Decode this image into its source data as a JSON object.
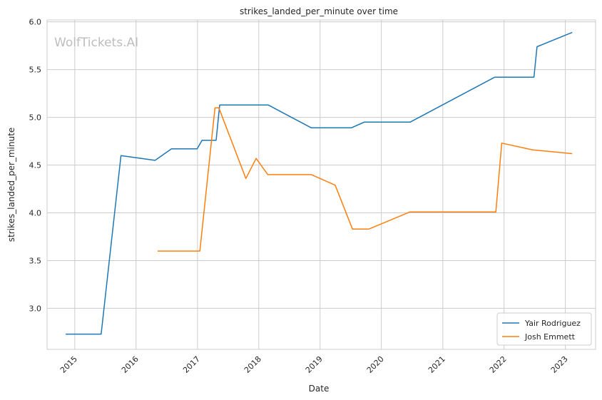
{
  "chart_data": {
    "type": "line",
    "title": "strikes_landed_per_minute over time",
    "xlabel": "Date",
    "ylabel": "strikes_landed_per_minute",
    "watermark": "WolfTickets.AI",
    "x_range": [
      "2014-07-20",
      "2023-06-30"
    ],
    "ylim": [
      2.57,
      6.02
    ],
    "y_ticks": [
      3.0,
      3.5,
      4.0,
      4.5,
      5.0,
      5.5,
      6.0
    ],
    "y_tick_labels": [
      "3.0",
      "3.5",
      "4.0",
      "4.5",
      "5.0",
      "5.5",
      "6.0"
    ],
    "x_ticks": [
      "2015-01-01",
      "2016-01-01",
      "2017-01-01",
      "2018-01-01",
      "2019-01-01",
      "2020-01-01",
      "2021-01-01",
      "2022-01-01",
      "2023-01-01"
    ],
    "x_tick_labels": [
      "2015",
      "2016",
      "2017",
      "2018",
      "2019",
      "2020",
      "2021",
      "2022",
      "2023"
    ],
    "grid": true,
    "legend_position": "bottom-right",
    "series": [
      {
        "name": "Yair Rodriguez",
        "color": "#1f77b4",
        "points": [
          [
            "2014-11-08",
            2.73
          ],
          [
            "2015-06-07",
            2.73
          ],
          [
            "2015-10-03",
            4.6
          ],
          [
            "2016-04-23",
            4.55
          ],
          [
            "2016-07-30",
            4.67
          ],
          [
            "2016-12-30",
            4.67
          ],
          [
            "2017-01-28",
            4.76
          ],
          [
            "2017-04-22",
            4.76
          ],
          [
            "2017-05-13",
            5.13
          ],
          [
            "2018-02-26",
            5.13
          ],
          [
            "2018-11-10",
            4.89
          ],
          [
            "2019-07-06",
            4.89
          ],
          [
            "2019-09-21",
            4.95
          ],
          [
            "2020-06-20",
            4.95
          ],
          [
            "2021-11-06",
            5.42
          ],
          [
            "2022-06-28",
            5.42
          ],
          [
            "2022-07-16",
            5.74
          ],
          [
            "2023-02-11",
            5.89
          ]
        ]
      },
      {
        "name": "Josh Emmett",
        "color": "#ff7f0e",
        "points": [
          [
            "2016-05-08",
            3.6
          ],
          [
            "2017-01-15",
            3.6
          ],
          [
            "2017-04-15",
            5.1
          ],
          [
            "2017-05-08",
            5.1
          ],
          [
            "2017-10-16",
            4.36
          ],
          [
            "2017-12-16",
            4.57
          ],
          [
            "2018-02-24",
            4.4
          ],
          [
            "2018-11-10",
            4.4
          ],
          [
            "2019-04-01",
            4.29
          ],
          [
            "2019-07-13",
            3.83
          ],
          [
            "2019-10-18",
            3.83
          ],
          [
            "2020-06-20",
            4.01
          ],
          [
            "2021-11-13",
            4.01
          ],
          [
            "2021-12-18",
            4.73
          ],
          [
            "2022-06-18",
            4.66
          ],
          [
            "2023-02-11",
            4.62
          ]
        ]
      }
    ]
  }
}
